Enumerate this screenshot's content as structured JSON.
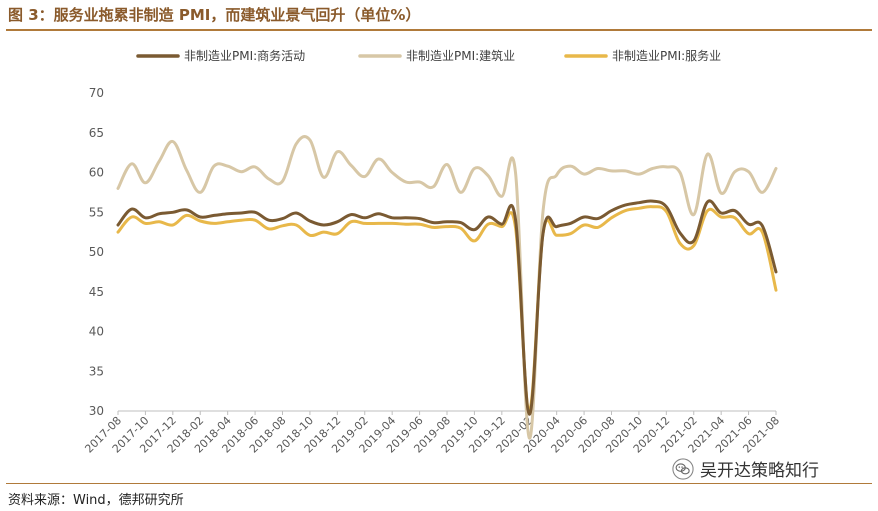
{
  "header": {
    "title": "图 3：服务业拖累非制造 PMI，而建筑业景气回升（单位%）"
  },
  "footer": {
    "source": "资料来源：Wind，德邦研究所"
  },
  "watermark": {
    "text": "吴开达策略知行",
    "icon": "wechat-icon"
  },
  "colors": {
    "accent": "#b07a3a",
    "title": "#8a5a2b",
    "business": "#7a5a32",
    "construction": "#d7c7a6",
    "services": "#e8b84a"
  },
  "chart_data": {
    "type": "line",
    "ylim": [
      30,
      70
    ],
    "yticks": [
      30,
      35,
      40,
      45,
      50,
      55,
      60,
      65,
      70
    ],
    "grid": false,
    "legend": "top-center",
    "x": [
      "2017-08",
      "2017-09",
      "2017-10",
      "2017-11",
      "2017-12",
      "2018-01",
      "2018-02",
      "2018-03",
      "2018-04",
      "2018-05",
      "2018-06",
      "2018-07",
      "2018-08",
      "2018-09",
      "2018-10",
      "2018-11",
      "2018-12",
      "2019-01",
      "2019-02",
      "2019-03",
      "2019-04",
      "2019-05",
      "2019-06",
      "2019-07",
      "2019-08",
      "2019-09",
      "2019-10",
      "2019-11",
      "2019-12",
      "2020-01",
      "2020-02",
      "2020-03",
      "2020-04",
      "2020-05",
      "2020-06",
      "2020-07",
      "2020-08",
      "2020-09",
      "2020-10",
      "2020-11",
      "2020-12",
      "2021-01",
      "2021-02",
      "2021-03",
      "2021-04",
      "2021-05",
      "2021-06",
      "2021-07",
      "2021-08"
    ],
    "xticks": [
      "2017-08",
      "2017-10",
      "2017-12",
      "2018-02",
      "2018-04",
      "2018-06",
      "2018-08",
      "2018-10",
      "2018-12",
      "2019-02",
      "2019-04",
      "2019-06",
      "2019-08",
      "2019-10",
      "2019-12",
      "2020-02",
      "2020-04",
      "2020-06",
      "2020-08",
      "2020-10",
      "2020-12",
      "2021-02",
      "2021-04",
      "2021-06",
      "2021-08"
    ],
    "series": [
      {
        "name": "非制造业PMI:商务活动",
        "color": "#7a5a32",
        "values": [
          53.4,
          55.4,
          54.3,
          54.8,
          55.0,
          55.3,
          54.4,
          54.6,
          54.8,
          54.9,
          55.0,
          54.0,
          54.2,
          54.9,
          53.9,
          53.4,
          53.8,
          54.7,
          54.3,
          54.8,
          54.3,
          54.3,
          54.2,
          53.7,
          53.8,
          53.7,
          52.8,
          54.4,
          53.5,
          54.1,
          29.6,
          52.3,
          53.2,
          53.6,
          54.4,
          54.2,
          55.2,
          55.9,
          56.2,
          56.4,
          55.7,
          52.4,
          51.4,
          56.3,
          54.9,
          55.2,
          53.5,
          53.3,
          47.5
        ]
      },
      {
        "name": "非制造业PMI:建筑业",
        "color": "#d7c7a6",
        "values": [
          58.0,
          61.1,
          58.7,
          61.4,
          63.9,
          60.3,
          57.5,
          60.8,
          60.8,
          60.1,
          60.7,
          59.2,
          58.9,
          63.6,
          64.1,
          59.4,
          62.6,
          60.9,
          59.5,
          61.7,
          60.0,
          58.8,
          58.8,
          58.2,
          61.0,
          57.5,
          60.5,
          59.6,
          57.0,
          60.0,
          26.6,
          55.1,
          59.7,
          60.8,
          59.8,
          60.5,
          60.2,
          60.2,
          59.8,
          60.5,
          60.7,
          60.0,
          54.7,
          62.3,
          57.4,
          60.1,
          60.1,
          57.5,
          60.5
        ]
      },
      {
        "name": "非制造业PMI:服务业",
        "color": "#e8b84a",
        "values": [
          52.5,
          54.4,
          53.6,
          53.8,
          53.4,
          54.6,
          53.9,
          53.6,
          53.8,
          54.0,
          54.0,
          52.9,
          53.3,
          53.4,
          52.1,
          52.5,
          52.3,
          53.8,
          53.6,
          53.6,
          53.6,
          53.5,
          53.5,
          53.1,
          53.2,
          53.0,
          51.4,
          53.5,
          53.2,
          53.1,
          30.1,
          52.3,
          52.1,
          52.3,
          53.4,
          53.1,
          54.3,
          55.2,
          55.5,
          55.7,
          55.1,
          51.1,
          50.8,
          55.2,
          54.4,
          54.3,
          52.3,
          52.5,
          45.2
        ]
      }
    ]
  }
}
